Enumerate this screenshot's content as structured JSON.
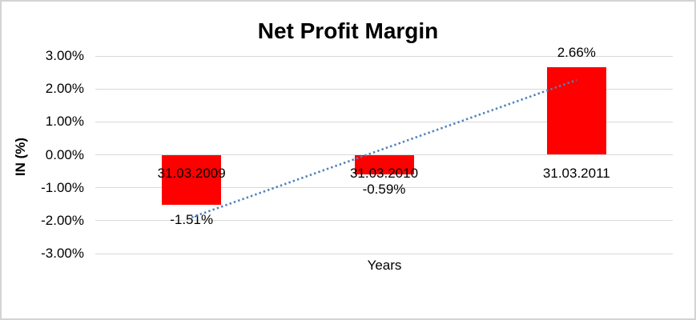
{
  "chart_data": {
    "type": "bar",
    "title": "Net Profit Margin",
    "xlabel": "Years",
    "ylabel": "IN (%)",
    "categories": [
      "31.03.2009",
      "31.03.2010",
      "31.03.2011"
    ],
    "values": [
      -1.51,
      -0.59,
      2.66
    ],
    "data_labels": [
      "-1.51%",
      "-0.59%",
      "2.66%"
    ],
    "ylim": [
      -3,
      3
    ],
    "yticks": [
      {
        "label": "3.00%",
        "value": 3
      },
      {
        "label": "2.00%",
        "value": 2
      },
      {
        "label": "1.00%",
        "value": 1
      },
      {
        "label": "0.00%",
        "value": 0
      },
      {
        "label": "-1.00%",
        "value": -1
      },
      {
        "label": "-2.00%",
        "value": -2
      },
      {
        "label": "-3.00%",
        "value": -3
      }
    ],
    "grid": true,
    "legend": "none",
    "bar_color": "#ff0000",
    "gridline_color": "#d9d9d9",
    "frame_border_color": "#d3d3d3",
    "trendline": {
      "style": "dotted",
      "color": "#4f81bd",
      "start_value": -1.9,
      "end_value": 2.27
    }
  }
}
